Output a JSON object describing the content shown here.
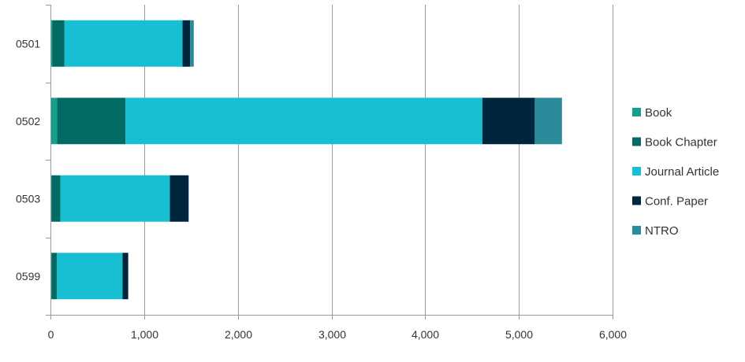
{
  "chart_data": {
    "type": "bar",
    "orientation": "horizontal",
    "stacked": true,
    "categories": [
      "0501",
      "0502",
      "0503",
      "0599"
    ],
    "series": [
      {
        "name": "Book",
        "color": "#12a08a",
        "values": [
          20,
          70,
          10,
          10
        ]
      },
      {
        "name": "Book Chapter",
        "color": "#006a63",
        "values": [
          130,
          730,
          95,
          60
        ]
      },
      {
        "name": "Journal Article",
        "color": "#18bed1",
        "values": [
          1260,
          3810,
          1170,
          700
        ]
      },
      {
        "name": "Conf. Paper",
        "color": "#00263d",
        "values": [
          80,
          560,
          200,
          60
        ]
      },
      {
        "name": "NTRO",
        "color": "#2a8b9b",
        "values": [
          40,
          290,
          0,
          0
        ]
      }
    ],
    "xlim": [
      0,
      6000
    ],
    "xticks": [
      "0",
      "1,000",
      "2,000",
      "3,000",
      "4,000",
      "5,000",
      "6,000"
    ],
    "xtick_values": [
      0,
      1000,
      2000,
      3000,
      4000,
      5000,
      6000
    ],
    "grid": "vertical",
    "legend_position": "right",
    "title": "",
    "xlabel": "",
    "ylabel": ""
  }
}
